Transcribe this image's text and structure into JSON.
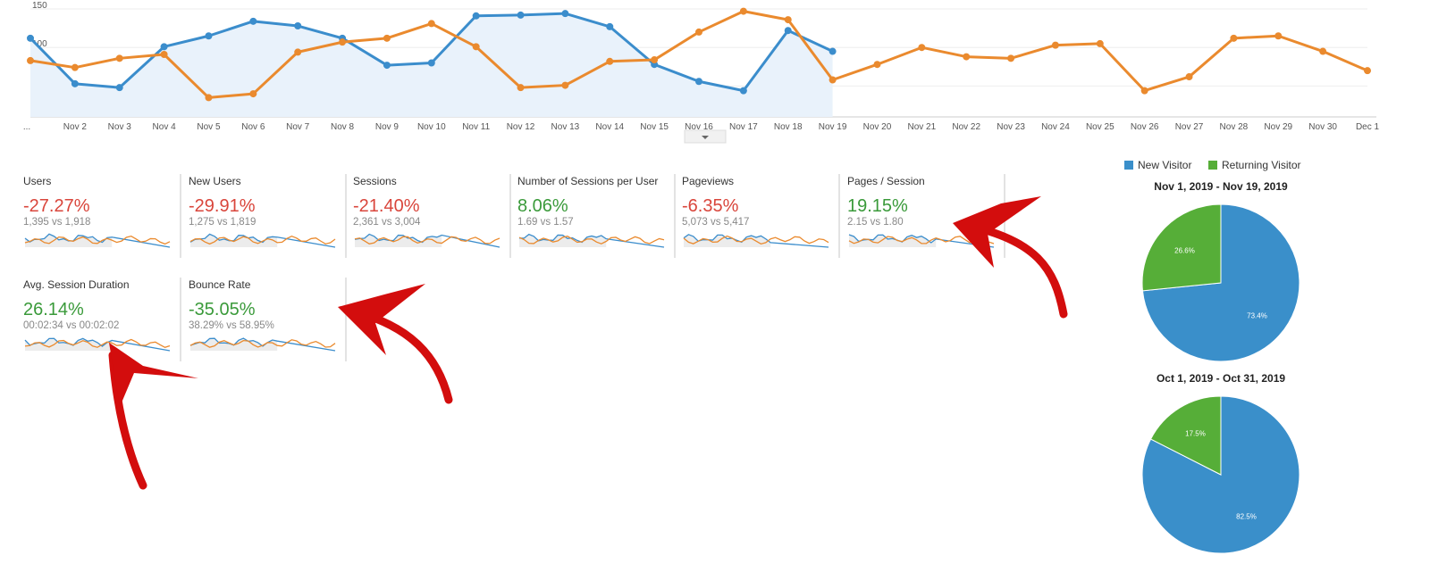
{
  "chart_data": [
    {
      "type": "line",
      "x": [
        "...",
        "Nov 2",
        "Nov 3",
        "Nov 4",
        "Nov 5",
        "Nov 6",
        "Nov 7",
        "Nov 8",
        "Nov 9",
        "Nov 10",
        "Nov 11",
        "Nov 12",
        "Nov 13",
        "Nov 14",
        "Nov 15",
        "Nov 16",
        "Nov 17",
        "Nov 18",
        "Nov 19",
        "Nov 20",
        "Nov 21",
        "Nov 22",
        "Nov 23",
        "Nov 24",
        "Nov 25",
        "Nov 26",
        "Nov 27",
        "Nov 28",
        "Nov 29",
        "Nov 30",
        "Dec 1"
      ],
      "ylim": [
        10,
        150
      ],
      "yticks": [
        150,
        100,
        50
      ],
      "grid": true,
      "series": [
        {
          "color": "#3b8dcc",
          "area_color": "#e9f2fb",
          "values": [
            112,
            53,
            48,
            101,
            115,
            134,
            128,
            112,
            77,
            80,
            141,
            142,
            144,
            127,
            78,
            56,
            44,
            122,
            95,
            null,
            null,
            null,
            null,
            null,
            null,
            null,
            null,
            null,
            null,
            null,
            null
          ]
        },
        {
          "color": "#ea8a2e",
          "values": [
            83,
            74,
            86,
            91,
            35,
            40,
            94,
            107,
            112,
            131,
            101,
            48,
            51,
            82,
            84,
            120,
            147,
            136,
            58,
            78,
            100,
            88,
            86,
            103,
            105,
            44,
            62,
            112,
            115,
            95,
            70
          ]
        }
      ]
    },
    {
      "type": "pie",
      "title": "Nov 1, 2019 - Nov 19, 2019",
      "categories": [
        "New Visitor",
        "Returning Visitor"
      ],
      "colors": [
        "#3a8fca",
        "#56ae38"
      ],
      "values": [
        73.4,
        26.6
      ],
      "value_labels": [
        "73.4%",
        "26.6%"
      ],
      "legend": "top"
    },
    {
      "type": "pie",
      "title": "Oct 1, 2019 - Oct 31, 2019",
      "categories": [
        "New Visitor",
        "Returning Visitor"
      ],
      "colors": [
        "#3a8fca",
        "#56ae38"
      ],
      "values": [
        82.5,
        17.5
      ],
      "value_labels": [
        "82.5%",
        "17.5%"
      ]
    }
  ],
  "metrics": [
    {
      "name": "Users",
      "change": "-27.27%",
      "comparison": "1,395 vs 1,918",
      "color": "#d9453b"
    },
    {
      "name": "New Users",
      "change": "-29.91%",
      "comparison": "1,275 vs 1,819",
      "color": "#d9453b"
    },
    {
      "name": "Sessions",
      "change": "-21.40%",
      "comparison": "2,361 vs 3,004",
      "color": "#d9453b"
    },
    {
      "name": "Number of Sessions per User",
      "change": "8.06%",
      "comparison": "1.69 vs 1.57",
      "color": "#3a9a3a"
    },
    {
      "name": "Pageviews",
      "change": "-6.35%",
      "comparison": "5,073 vs 5,417",
      "color": "#d9453b"
    },
    {
      "name": "Pages / Session",
      "change": "19.15%",
      "comparison": "2.15 vs 1.80",
      "color": "#3a9a3a"
    },
    {
      "name": "Avg. Session Duration",
      "change": "26.14%",
      "comparison": "00:02:34 vs 00:02:02",
      "color": "#3a9a3a"
    },
    {
      "name": "Bounce Rate",
      "change": "-35.05%",
      "comparison": "38.29% vs 58.95%",
      "color": "#3a9a3a"
    }
  ]
}
